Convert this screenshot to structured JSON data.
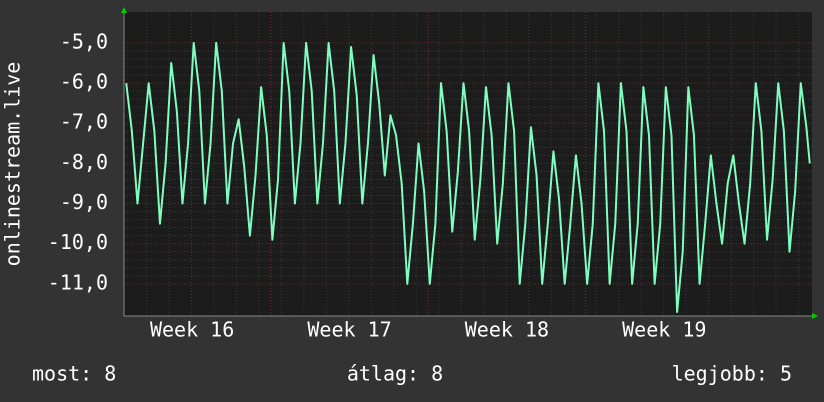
{
  "chart_data": {
    "type": "line",
    "ylabel": "onlinestream.live",
    "x": [
      0.1,
      0.35,
      0.6,
      0.85,
      1.1,
      1.35,
      1.6,
      1.85,
      2.1,
      2.35,
      2.6,
      2.85,
      3.1,
      3.35,
      3.6,
      3.85,
      4.1,
      4.35,
      4.6,
      4.85,
      5.1,
      5.35,
      5.6,
      5.85,
      6.1,
      6.35,
      6.6,
      6.85,
      7.1,
      7.35,
      7.6,
      7.85,
      8.1,
      8.35,
      8.6,
      8.85,
      9.1,
      9.35,
      9.6,
      9.85,
      10.1,
      10.35,
      10.6,
      10.85,
      11.1,
      11.35,
      11.6,
      11.85,
      12.1,
      12.35,
      12.6,
      12.85,
      13.1,
      13.35,
      13.6,
      13.85,
      14.1,
      14.35,
      14.6,
      14.85,
      15.1,
      15.35,
      15.6,
      15.85,
      16.1,
      16.35,
      16.6,
      16.85,
      17.1,
      17.35,
      17.6,
      17.85,
      18.1,
      18.35,
      18.6,
      18.85,
      19.1,
      19.35,
      19.6,
      19.85,
      20.1,
      20.35,
      20.6,
      20.85,
      21.1,
      21.35,
      21.6,
      21.85,
      22.1,
      22.35,
      22.6,
      22.85,
      23.1,
      23.35,
      23.6,
      23.85,
      24.1,
      24.35,
      24.6,
      24.85,
      25.1,
      25.35,
      25.6,
      25.85,
      26.1,
      26.35,
      26.6,
      26.85,
      27.1,
      27.35,
      27.6,
      27.85,
      28.1,
      28.35,
      28.6,
      28.85,
      29.1,
      29.35,
      29.6,
      29.85,
      30.1,
      30.35,
      30.5
    ],
    "series": [
      {
        "name": "onlinestream.live",
        "color": "#7fffbf",
        "values": [
          -6,
          -7.2,
          -9,
          -7.5,
          -6,
          -7.2,
          -9.5,
          -8,
          -5.5,
          -6.7,
          -9,
          -7.5,
          -5,
          -6.2,
          -9,
          -7.5,
          -5,
          -6.2,
          -9,
          -7.5,
          -6.9,
          -8.1,
          -9.8,
          -8.3,
          -6.1,
          -7.3,
          -9.9,
          -8.4,
          -5,
          -6.2,
          -9,
          -7.5,
          -5,
          -6.2,
          -9,
          -7.5,
          -5,
          -6.2,
          -9,
          -7.5,
          -5.1,
          -6.3,
          -9,
          -7.5,
          -5.3,
          -6.5,
          -8.3,
          -6.8,
          -7.3,
          -8.5,
          -11,
          -9.5,
          -7.5,
          -8.7,
          -11,
          -9.5,
          -6,
          -7.2,
          -9.7,
          -8.2,
          -6,
          -7.2,
          -9.9,
          -8.4,
          -6.1,
          -7.3,
          -10,
          -8.5,
          -6,
          -7.2,
          -11,
          -9.5,
          -7.1,
          -8.3,
          -11,
          -9.5,
          -7.7,
          -8.9,
          -11,
          -9.5,
          -7.8,
          -9,
          -11,
          -9.5,
          -6,
          -7.2,
          -11,
          -9.5,
          -6,
          -7.2,
          -11,
          -9.5,
          -6.1,
          -7.3,
          -11,
          -9.5,
          -6.1,
          -7.3,
          -11.7,
          -10.2,
          -6.1,
          -7.3,
          -11,
          -9.5,
          -7.8,
          -9,
          -10,
          -8.5,
          -7.8,
          -9,
          -10,
          -8.5,
          -6,
          -7.2,
          -9.9,
          -8.4,
          -6,
          -7.2,
          -10.2,
          -8.7,
          -6,
          -7.1,
          -8
        ]
      }
    ],
    "xlim": [
      0,
      30.6
    ],
    "xticks": [
      {
        "value": 3.03,
        "label": "Week 16"
      },
      {
        "value": 10.03,
        "label": "Week 17"
      },
      {
        "value": 17.03,
        "label": "Week 18"
      },
      {
        "value": 24.03,
        "label": "Week 19"
      }
    ],
    "ylim": [
      -11.8,
      -4.23
    ],
    "yticks": [
      {
        "value": -5,
        "label": "-5,0"
      },
      {
        "value": -6,
        "label": "-6,0"
      },
      {
        "value": -7,
        "label": "-7,0"
      },
      {
        "value": -8,
        "label": "-8,0"
      },
      {
        "value": -9,
        "label": "-9,0"
      },
      {
        "value": -10,
        "label": "-10,0"
      },
      {
        "value": -11,
        "label": "-11,0"
      }
    ],
    "grid": true,
    "footer": [
      "most: 8",
      "átlag: 8",
      "legjobb: 5"
    ]
  }
}
